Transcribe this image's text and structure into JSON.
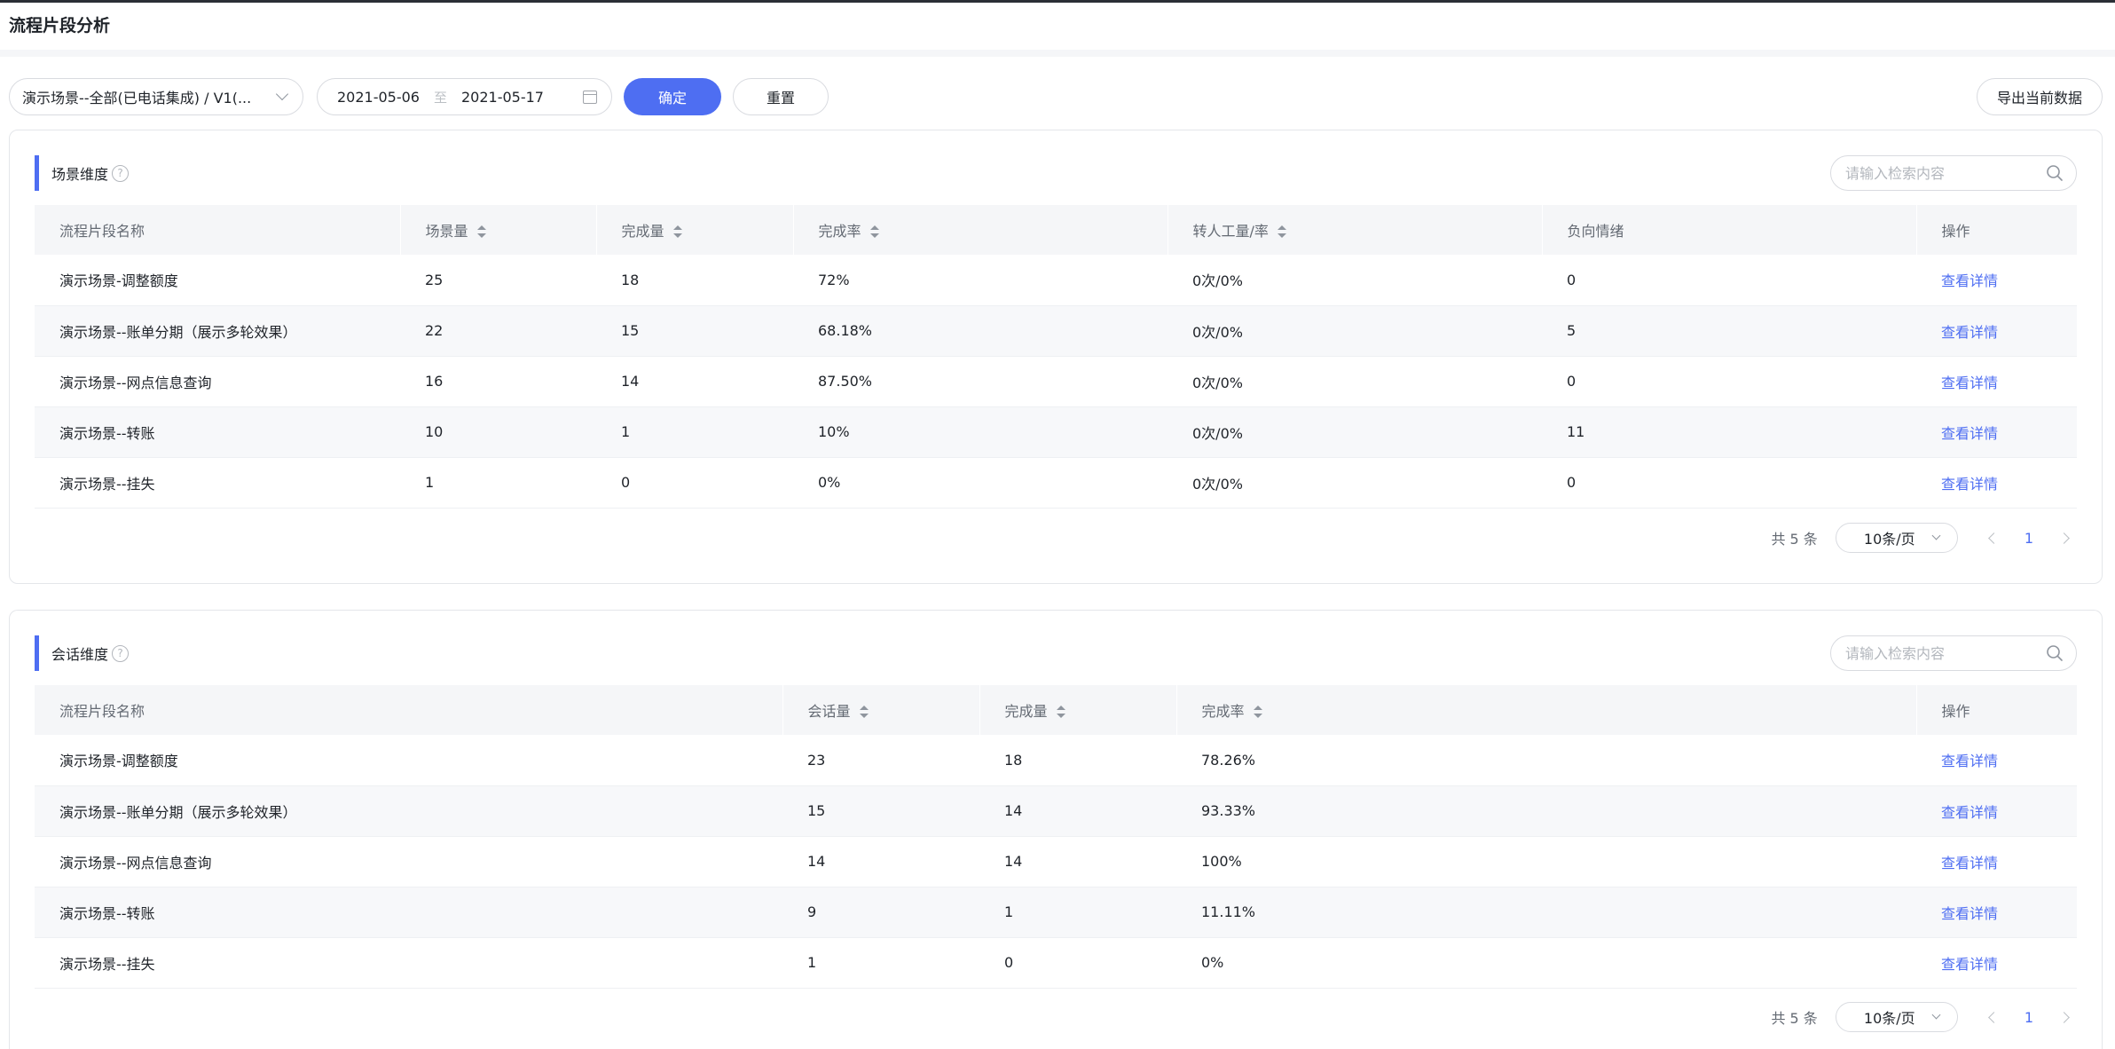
{
  "page": {
    "title": "流程片段分析"
  },
  "toolbar": {
    "scene_select": "演示场景--全部(已电话集成) / V1(...",
    "date_start": "2021-05-06",
    "date_sep": "至",
    "date_end": "2021-05-17",
    "confirm_label": "确定",
    "reset_label": "重置",
    "export_label": "导出当前数据"
  },
  "scene_card": {
    "title": "场景维度",
    "help": "?",
    "search_placeholder": "请输入检索内容",
    "columns": [
      "流程片段名称",
      "场景量",
      "完成量",
      "完成率",
      "转人工量/率",
      "负向情绪",
      "操作"
    ],
    "rows": [
      [
        "演示场景-调整额度",
        "25",
        "18",
        "72%",
        "0次/0%",
        "0",
        "查看详情"
      ],
      [
        "演示场景--账单分期（展示多轮效果）",
        "22",
        "15",
        "68.18%",
        "0次/0%",
        "5",
        "查看详情"
      ],
      [
        "演示场景--网点信息查询",
        "16",
        "14",
        "87.50%",
        "0次/0%",
        "0",
        "查看详情"
      ],
      [
        "演示场景--转账",
        "10",
        "1",
        "10%",
        "0次/0%",
        "11",
        "查看详情"
      ],
      [
        "演示场景--挂失",
        "1",
        "0",
        "0%",
        "0次/0%",
        "0",
        "查看详情"
      ]
    ],
    "pager": {
      "total": "共 5 条",
      "page_size": "10条/页",
      "current": "1"
    }
  },
  "session_card": {
    "title": "会话维度",
    "help": "?",
    "search_placeholder": "请输入检索内容",
    "columns": [
      "流程片段名称",
      "会话量",
      "完成量",
      "完成率",
      "操作"
    ],
    "rows": [
      [
        "演示场景-调整额度",
        "23",
        "18",
        "78.26%",
        "查看详情"
      ],
      [
        "演示场景--账单分期（展示多轮效果）",
        "15",
        "14",
        "93.33%",
        "查看详情"
      ],
      [
        "演示场景--网点信息查询",
        "14",
        "14",
        "100%",
        "查看详情"
      ],
      [
        "演示场景--转账",
        "9",
        "1",
        "11.11%",
        "查看详情"
      ],
      [
        "演示场景--挂失",
        "1",
        "0",
        "0%",
        "查看详情"
      ]
    ],
    "pager": {
      "total": "共 5 条",
      "page_size": "10条/页",
      "current": "1"
    }
  },
  "colors": {
    "accent": "#4e6ef2",
    "header_bg": "#f5f6f8",
    "stripe_bg": "#f7f8fa"
  },
  "icons": [
    "chevron-down-icon",
    "calendar-icon",
    "help-icon",
    "search-icon",
    "sort-icon",
    "chevron-left-icon",
    "chevron-right-icon"
  ]
}
